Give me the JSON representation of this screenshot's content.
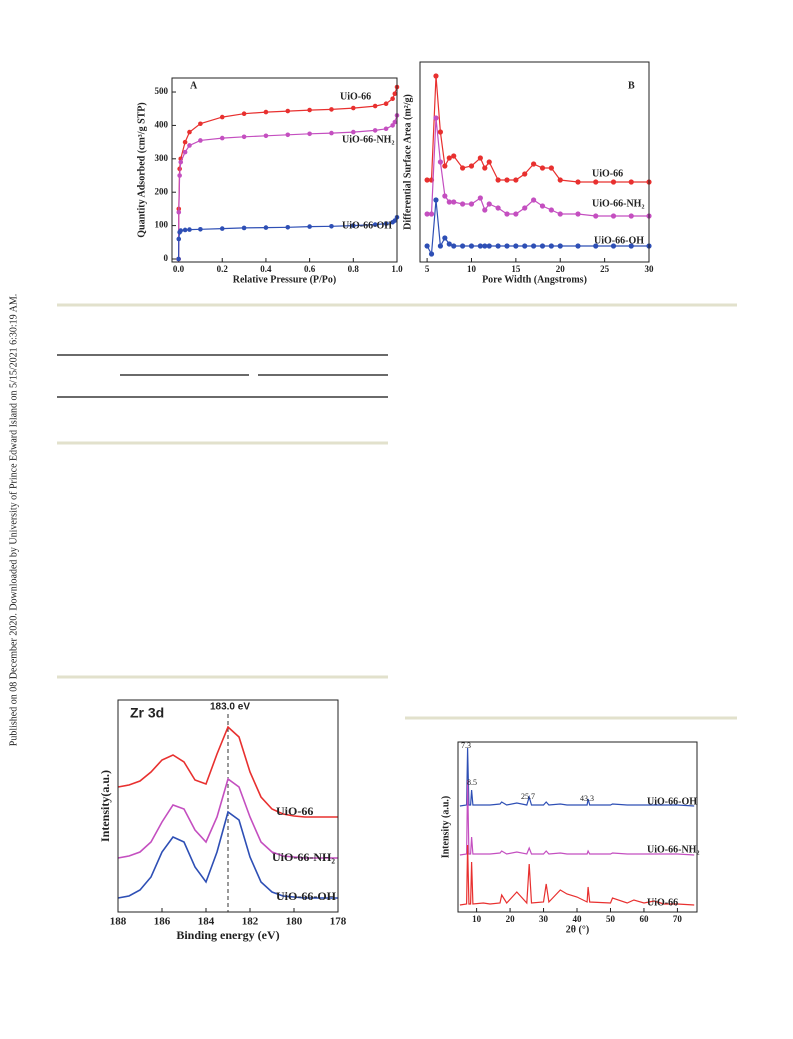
{
  "sidebar": "Published on 08 December 2020. Downloaded by University of Prince Edward Island on 5/15/2021 6:30:19 AM.",
  "chart_data": [
    {
      "type": "line",
      "panel": "A",
      "xlabel": "Relative Pressure (P/Po)",
      "ylabel": "Quantity Adsorbed (cm³/g STP)",
      "markers": true,
      "xlim": [
        -0.03,
        1.0
      ],
      "ylim": [
        -9,
        542
      ],
      "xticks": [
        {
          "value": 0,
          "label": "0.0"
        },
        {
          "value": 0.2,
          "label": "0.2"
        },
        {
          "value": 0.4,
          "label": "0.4"
        },
        {
          "value": 0.6,
          "label": "0.6"
        },
        {
          "value": 0.8,
          "label": "0.8"
        },
        {
          "value": 1.0,
          "label": "1.0"
        }
      ],
      "yticks": [
        0,
        100,
        200,
        300,
        400,
        500
      ],
      "x": [
        0,
        0.001,
        0.005,
        0.01,
        0.03,
        0.05,
        0.1,
        0.2,
        0.3,
        0.4,
        0.5,
        0.6,
        0.7,
        0.8,
        0.9,
        0.95,
        0.98,
        0.99,
        1.0
      ],
      "series": [
        {
          "name": "UiO-66",
          "color": "#e8302f",
          "values": [
            0,
            150,
            270,
            300,
            350,
            380,
            405,
            425,
            435,
            440,
            443,
            446,
            448,
            452,
            458,
            465,
            480,
            495,
            515
          ]
        },
        {
          "name": "UiO-66-NH₂",
          "color": "#c44fc0",
          "values": [
            0,
            140,
            250,
            290,
            320,
            340,
            355,
            362,
            366,
            369,
            372,
            375,
            377,
            380,
            385,
            390,
            400,
            410,
            430
          ]
        },
        {
          "name": "UiO-66-OH",
          "color": "#2e4fb5",
          "values": [
            0,
            60,
            80,
            85,
            87,
            88,
            89,
            91,
            93,
            94,
            95,
            97,
            98,
            100,
            103,
            106,
            110,
            115,
            125
          ]
        }
      ]
    },
    {
      "type": "line",
      "panel": "B",
      "xlabel": "Pore Width (Angstroms)",
      "ylabel": "Differential Surface Area (m²/g)",
      "markers": true,
      "xlim": [
        4.2,
        30
      ],
      "ylim": [
        0,
        100
      ],
      "xticks": [
        5,
        10,
        15,
        20,
        25,
        30
      ],
      "yticks": [],
      "x": [
        5,
        5.5,
        6,
        6.5,
        7,
        7.5,
        8,
        9,
        10,
        11,
        11.5,
        12,
        13,
        14,
        15,
        16,
        17,
        18,
        19,
        20,
        22,
        24,
        26,
        28,
        30
      ],
      "series": [
        {
          "name": "UiO-66",
          "color": "#e8302f",
          "values": [
            41,
            41,
            93,
            65,
            48,
            52,
            53,
            47,
            48,
            52,
            47,
            50,
            41,
            41,
            41,
            44,
            49,
            47,
            47,
            41,
            40,
            40,
            40,
            40,
            40
          ]
        },
        {
          "name": "UiO-66-NH₂",
          "color": "#c44fc0",
          "values": [
            24,
            24,
            72,
            50,
            33,
            30,
            30,
            29,
            29,
            32,
            26,
            29,
            27,
            24,
            24,
            27,
            31,
            28,
            26,
            24,
            24,
            23,
            23,
            23,
            23
          ]
        },
        {
          "name": "UiO-66-OH",
          "color": "#2e4fb5",
          "values": [
            8,
            4,
            31,
            8,
            12,
            9,
            8,
            8,
            8,
            8,
            8,
            8,
            8,
            8,
            8,
            8,
            8,
            8,
            8,
            8,
            8,
            8,
            8,
            8,
            8
          ]
        }
      ]
    },
    {
      "type": "line",
      "panel": "Zr 3d",
      "annotation": "183.0 eV",
      "vline": 183.0,
      "xlabel": "Binding energy (eV)",
      "ylabel": "Intensity(a.u.)",
      "markers": false,
      "xlim": [
        188,
        178
      ],
      "ylim": [
        0,
        212
      ],
      "xticks": [
        188,
        186,
        184,
        182,
        180,
        178
      ],
      "yticks": [],
      "x": [
        188,
        187.5,
        187,
        186.5,
        186,
        185.5,
        185,
        184.5,
        184,
        183.5,
        183,
        182.5,
        182,
        181.5,
        181,
        180.5,
        180,
        179.5,
        179,
        178.5,
        178
      ],
      "series": [
        {
          "name": "UiO-66",
          "color": "#e8302f",
          "values": [
            125,
            127,
            131,
            140,
            152,
            157,
            150,
            132,
            128,
            158,
            185,
            175,
            140,
            115,
            103,
            98,
            96,
            95,
            95,
            95,
            95
          ]
        },
        {
          "name": "UiO-66-NH₂",
          "color": "#c44fc0",
          "values": [
            54,
            56,
            60,
            70,
            90,
            107,
            103,
            82,
            70,
            95,
            133,
            125,
            95,
            70,
            60,
            56,
            55,
            54,
            54,
            54,
            54
          ]
        },
        {
          "name": "UiO-66-OH",
          "color": "#2e4fb5",
          "values": [
            14,
            16,
            22,
            35,
            60,
            75,
            70,
            45,
            30,
            60,
            100,
            92,
            55,
            30,
            20,
            16,
            15,
            14,
            14,
            14,
            14
          ]
        }
      ]
    },
    {
      "type": "line",
      "annotations": [
        "7.3",
        "8.5",
        "25.7",
        "43.3"
      ],
      "xlabel": "2θ (°)",
      "ylabel": "Intensity (a.u.)",
      "markers": false,
      "xlim": [
        4.44,
        75.85
      ],
      "ylim": [
        0,
        170
      ],
      "xticks": [
        10,
        20,
        30,
        40,
        50,
        60,
        70
      ],
      "yticks": [],
      "x": [
        5,
        7,
        7.3,
        7.7,
        8.2,
        8.5,
        8.9,
        12,
        14,
        17,
        17.5,
        19,
        22,
        25,
        25.7,
        26.4,
        30,
        30.8,
        31.6,
        35,
        37,
        40,
        43,
        43.3,
        43.8,
        50,
        50.6,
        55,
        57,
        60,
        63,
        66,
        70,
        75
      ],
      "series": [
        {
          "name": "UiO-66-OH",
          "color": "#2e4fb5",
          "values": [
            106,
            107,
            164,
            107,
            107,
            122,
            107,
            107,
            107,
            108,
            110,
            107,
            109,
            107,
            115,
            107,
            107,
            110,
            107,
            108,
            107,
            107,
            107,
            113,
            107,
            107,
            108,
            107,
            107,
            107,
            107,
            107,
            107,
            106
          ]
        },
        {
          "name": "UiO-66-NH₂",
          "color": "#c44fc0",
          "values": [
            57,
            58,
            132,
            58,
            58,
            75,
            58,
            58,
            58,
            59,
            61,
            58,
            60,
            58,
            64,
            58,
            58,
            61,
            58,
            59,
            58,
            58,
            58,
            61,
            58,
            58,
            59,
            58,
            58,
            58,
            58,
            58,
            58,
            57
          ]
        },
        {
          "name": "UiO-66",
          "color": "#e8302f",
          "values": [
            7,
            8,
            67,
            8,
            8,
            50,
            8,
            9,
            8,
            9,
            17,
            9,
            20,
            9,
            48,
            9,
            10,
            28,
            10,
            22,
            18,
            15,
            10,
            25,
            10,
            9,
            14,
            9,
            12,
            9,
            11,
            8,
            8,
            7
          ]
        }
      ]
    }
  ]
}
